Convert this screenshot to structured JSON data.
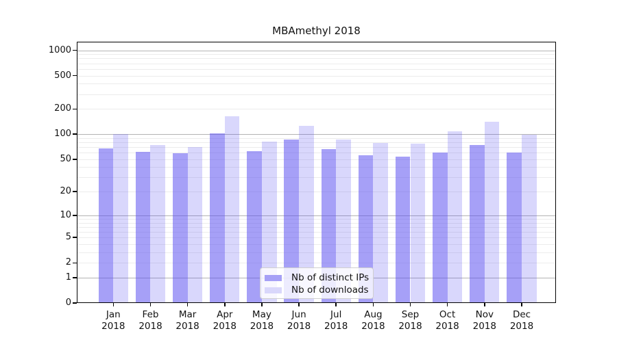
{
  "title": "MBAmethyl 2018",
  "colors": {
    "bar_ips": "rgba(84,72,240,0.52)",
    "bar_downloads": "rgba(84,72,240,0.22)",
    "legend_swatch_ips": "#a6a0f6",
    "legend_swatch_downloads": "#d9d7fb",
    "grid_major": "#b3b3b3",
    "grid_minor": "#ececec",
    "spine": "#000000"
  },
  "chart_data": {
    "type": "bar",
    "title": "MBAmethyl 2018",
    "categories": [
      "Jan",
      "Feb",
      "Mar",
      "Apr",
      "May",
      "Jun",
      "Jul",
      "Aug",
      "Sep",
      "Oct",
      "Nov",
      "Dec"
    ],
    "x_year": "2018",
    "series": [
      {
        "name": "Nb of distinct IPs",
        "values": [
          67,
          61,
          59,
          103,
          62,
          87,
          66,
          56,
          54,
          60,
          74,
          60
        ]
      },
      {
        "name": "Nb of downloads",
        "values": [
          100,
          74,
          70,
          163,
          82,
          126,
          87,
          78,
          77,
          108,
          140,
          99
        ]
      }
    ],
    "xlabel": "",
    "ylabel": "",
    "y_axis": {
      "scale": "log1p",
      "tick_values": [
        0,
        1,
        2,
        5,
        10,
        20,
        50,
        100,
        200,
        500,
        1000
      ],
      "tick_labels": [
        "0",
        "1",
        "2",
        "5",
        "10",
        "20",
        "50",
        "100",
        "200",
        "500",
        "1000"
      ],
      "major_grid_values": [
        1,
        10,
        100,
        1000
      ],
      "minor_grid_values": [
        2,
        3,
        4,
        5,
        6,
        7,
        8,
        9,
        20,
        30,
        40,
        50,
        60,
        70,
        80,
        90,
        200,
        300,
        400,
        500,
        600,
        700,
        800,
        900
      ],
      "ylim": [
        0,
        1270
      ]
    },
    "grid": "both",
    "legend_position": "lower center"
  }
}
